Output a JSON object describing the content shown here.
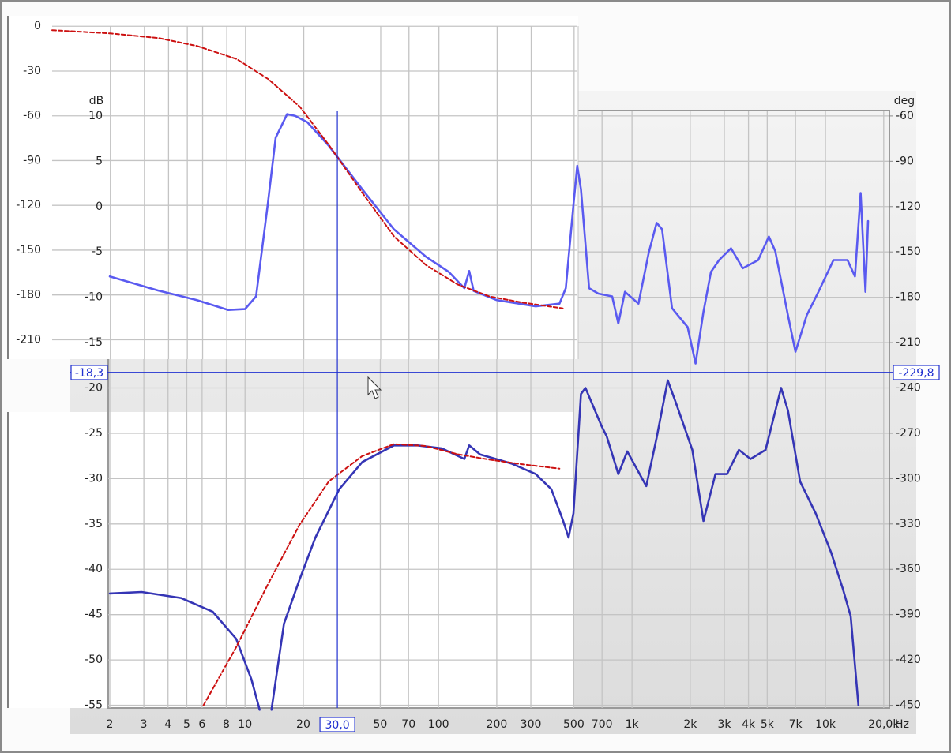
{
  "chart_data": [
    {
      "type": "line",
      "xscale": "log",
      "x_label": "Hz",
      "y_label": "dB",
      "y2_label": "deg",
      "xlim": [
        2,
        21000
      ],
      "xticks": [
        2,
        3,
        4,
        5,
        6,
        8,
        10,
        20,
        50,
        70,
        100,
        200,
        300,
        500,
        700,
        {
          "value": 1000,
          "label": "1k"
        },
        {
          "value": 2000,
          "label": "2k"
        },
        {
          "value": 3000,
          "label": "3k"
        },
        {
          "value": 4000,
          "label": "4k"
        },
        {
          "value": 5000,
          "label": "5k"
        },
        {
          "value": 7000,
          "label": "7k"
        },
        {
          "value": 10000,
          "label": "10k"
        },
        {
          "value": 20000,
          "label": "20,0k"
        }
      ],
      "ylim": [
        -55.3,
        10.6
      ],
      "yticks": [
        10,
        5,
        0,
        -5,
        -10,
        -15,
        -20,
        -25,
        -30,
        -35,
        -40,
        -45,
        -50,
        -55
      ],
      "y2lim": [
        -451.8,
        -56.4
      ],
      "y2ticks": [
        -60,
        -90,
        -120,
        -150,
        -180,
        -210,
        -240,
        -270,
        -300,
        -330,
        -360,
        -390,
        -420,
        -450
      ],
      "grid": true,
      "cursor": {
        "x": 30,
        "x_label": "30,0",
        "y": -18.3,
        "y_label": "-18,3",
        "y2": -229.8,
        "y2_label": "-229,8"
      },
      "series": [
        {
          "color": "#5a5af0",
          "dash": false,
          "x": [
            2,
            3.55,
            5.62,
            8.19,
            10,
            11.4,
            13.1,
            14.4,
            16.5,
            18.2,
            21,
            27.1,
            40.4,
            58.8,
            85.7,
            113,
            136,
            144,
            152,
            199,
            318,
            422,
            455,
            498,
            521,
            545,
            600,
            670,
            790,
            850,
            920,
            1080,
            1220,
            1340,
            1430,
            1610,
            1940,
            2130,
            2340,
            2560,
            2820,
            3250,
            3740,
            4490,
            5100,
            5500,
            6400,
            7000,
            8000,
            9200,
            11000,
            13000,
            14200,
            15200,
            16100,
            16600
          ],
          "values": [
            -7.7,
            -9.25,
            -10.3,
            -11.4,
            -11.3,
            -9.9,
            0.2,
            7.6,
            10.2,
            10,
            9.3,
            6.7,
            1.9,
            -2.5,
            -5.5,
            -7.2,
            -9,
            -7.1,
            -9.3,
            -10.3,
            -11,
            -10.7,
            -9,
            0.2,
            4.5,
            1.9,
            -9,
            -9.6,
            -9.9,
            -12.9,
            -9.4,
            -10.7,
            -5.1,
            -1.8,
            -2.5,
            -11.2,
            -13.3,
            -17.3,
            -11.6,
            -7.2,
            -5.9,
            -4.6,
            -6.8,
            -5.9,
            -3.3,
            -4.9,
            -12,
            -16,
            -12,
            -9.4,
            -5.9,
            -5.9,
            -7.7,
            1.5,
            -9.4,
            -1.6
          ]
        },
        {
          "color": "#3535b5",
          "dash": false,
          "axis": "y2",
          "x": [
            2,
            2.92,
            4.66,
            6.8,
            9,
            10.8,
            11.9,
            12.8,
            13.7,
            15.9,
            19.1,
            23.1,
            30.7,
            40.4,
            58.8,
            78,
            104,
            136,
            144,
            164,
            238,
            318,
            383,
            441,
            470,
            498,
            545,
            575,
            695,
            740,
            850,
            945,
            1185,
            1340,
            1530,
            1710,
            2050,
            2340,
            2700,
            3100,
            3570,
            4100,
            4900,
            5900,
            6400,
            7400,
            8900,
            10700,
            12300,
            13500,
            14800
          ],
          "values": [
            -376,
            -375,
            -379,
            -388,
            -406,
            -433,
            -453,
            null,
            -453,
            -396,
            -367,
            -339,
            -307,
            -289,
            -278,
            -278,
            -280,
            -287,
            -278,
            -284,
            -290,
            -297,
            -307,
            -328,
            -339,
            -323,
            -244,
            -240,
            -265,
            -272,
            -297,
            -282,
            -305,
            -273,
            -235,
            -252,
            -281,
            -328,
            -297,
            -297,
            -281,
            -287,
            -281,
            -240,
            -255,
            -302,
            -323,
            -349,
            -373,
            -391,
            -450
          ]
        },
        {
          "color": "#cc1111",
          "dash": true,
          "x": [
            6.1,
            9,
            13.1,
            19.1,
            27.1,
            40.4,
            58.8,
            85.7,
            125,
            183,
            267,
            422
          ],
          "values": [
            -55,
            -48.6,
            -41.7,
            -35.1,
            -30.3,
            -27.5,
            -26.2,
            -26.4,
            -27.3,
            -27.9,
            -28.4,
            -28.9
          ]
        }
      ]
    },
    {
      "type": "line",
      "xscale": "log",
      "xlim": [
        1,
        520
      ],
      "ylim": [
        -223,
        7
      ],
      "yticks": [
        0,
        -30,
        -60,
        -90,
        -120,
        -150,
        -180,
        -210
      ],
      "grid": true,
      "series": [
        {
          "color": "#cc1111",
          "dash": true,
          "x": [
            1,
            2,
            3.55,
            5.6,
            9,
            13.1,
            19.1,
            27.1,
            40.4,
            58.8,
            85.7,
            125,
            183,
            267,
            437
          ],
          "values": [
            -2.6,
            -4.8,
            -7.9,
            -13.2,
            -22,
            -35.4,
            -54,
            -80,
            -112,
            -141,
            -160,
            -173,
            -181,
            -185,
            -189
          ]
        }
      ]
    }
  ]
}
